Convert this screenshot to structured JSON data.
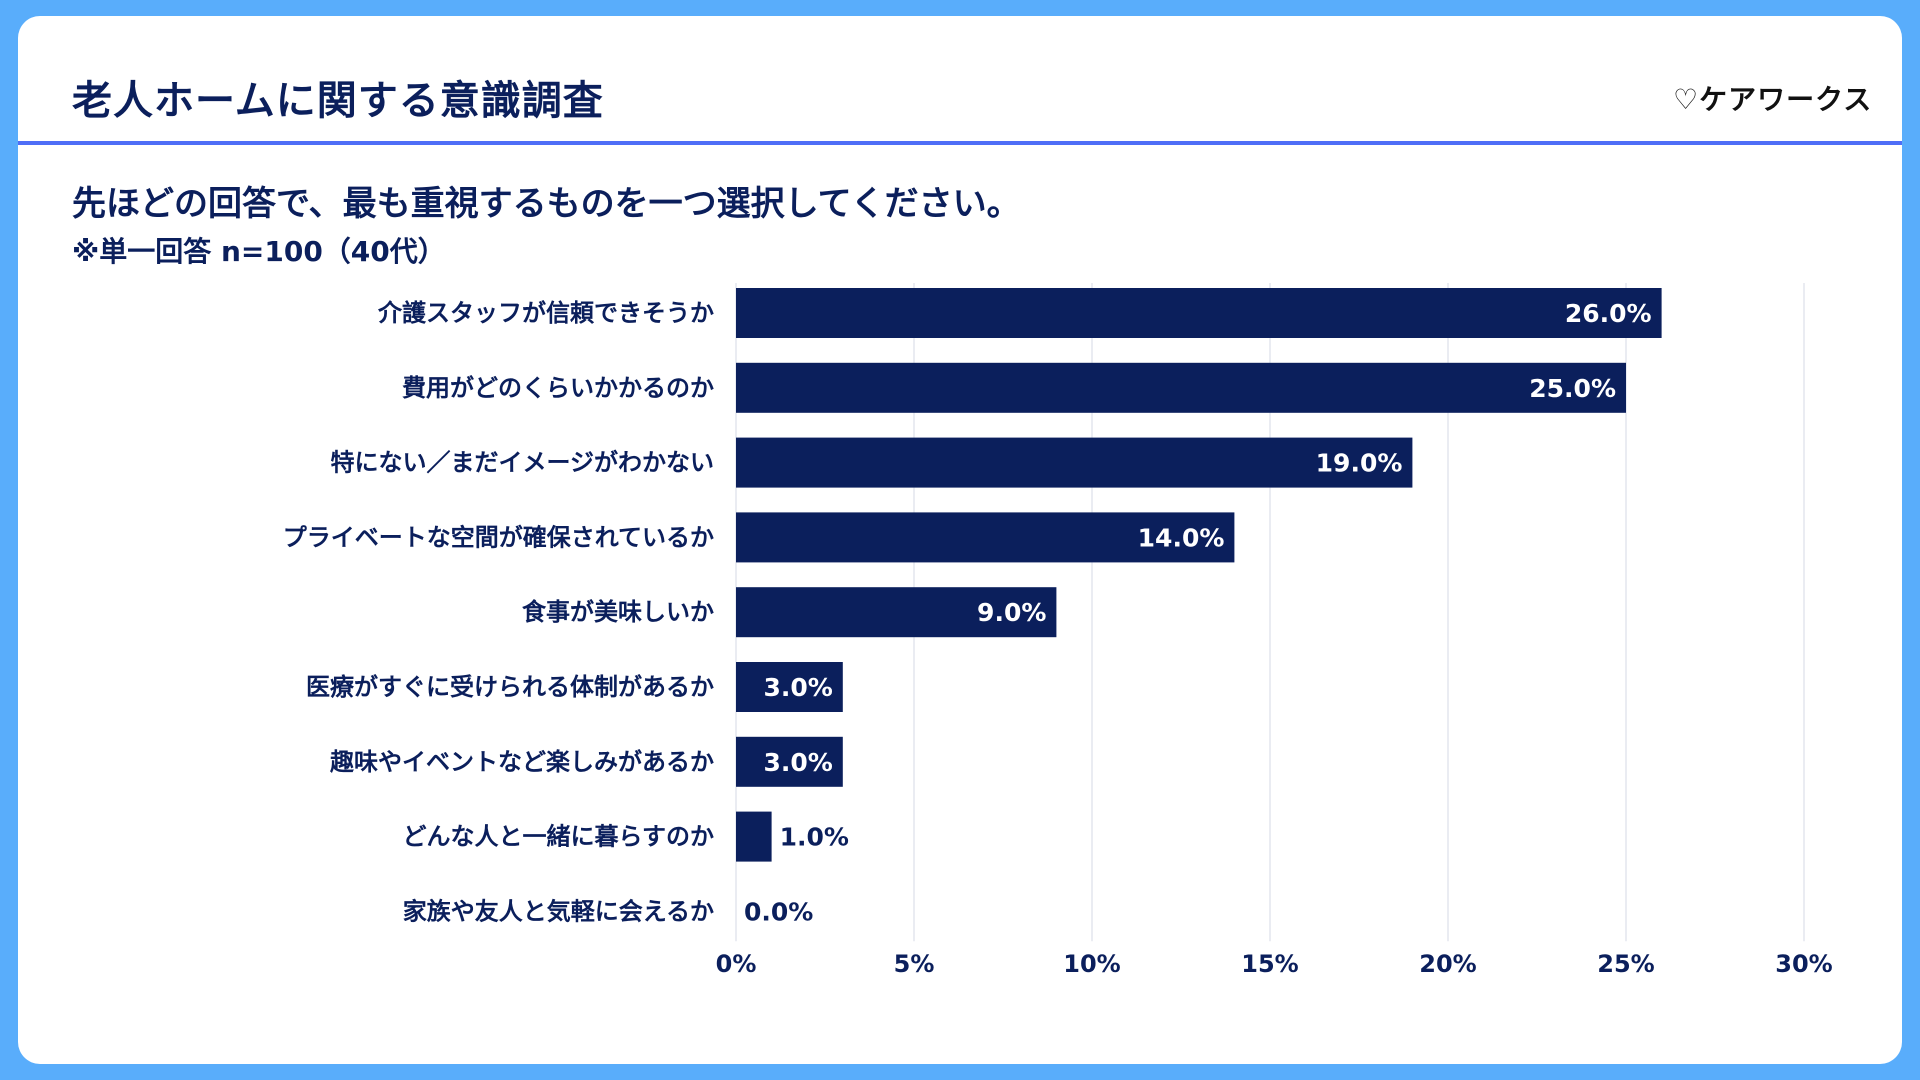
{
  "header": {
    "title": "老人ホームに関する意識調査",
    "logo": "ケアワークス",
    "logo_icon": "heart-icon"
  },
  "colors": {
    "background": "#59adfb",
    "bar": "#0b1f5c",
    "rule": "#4f6ef7",
    "grid": "#e3e6ee"
  },
  "chart_data": {
    "type": "bar",
    "orientation": "horizontal",
    "title": "先ほどの回答で、最も重視するものを一つ選択してください。",
    "subtitle": "※単一回答 n=100（40代）",
    "categories": [
      "介護スタッフが信頼できそうか",
      "費用がどのくらいかかるのか",
      "特にない／まだイメージがわかない",
      "プライベートな空間が確保されているか",
      "食事が美味しいか",
      "医療がすぐに受けられる体制があるか",
      "趣味やイベントなど楽しみがあるか",
      "どんな人と一緒に暮らすのか",
      "家族や友人と気軽に会えるか"
    ],
    "values": [
      26.0,
      25.0,
      19.0,
      14.0,
      9.0,
      3.0,
      3.0,
      1.0,
      0.0
    ],
    "data_labels": [
      "26.0%",
      "25.0%",
      "19.0%",
      "14.0%",
      "9.0%",
      "3.0%",
      "3.0%",
      "1.0%",
      "0.0%"
    ],
    "xlim": [
      0,
      30
    ],
    "xticks": [
      "0%",
      "5%",
      "10%",
      "15%",
      "20%",
      "25%",
      "30%"
    ],
    "grid": true
  }
}
